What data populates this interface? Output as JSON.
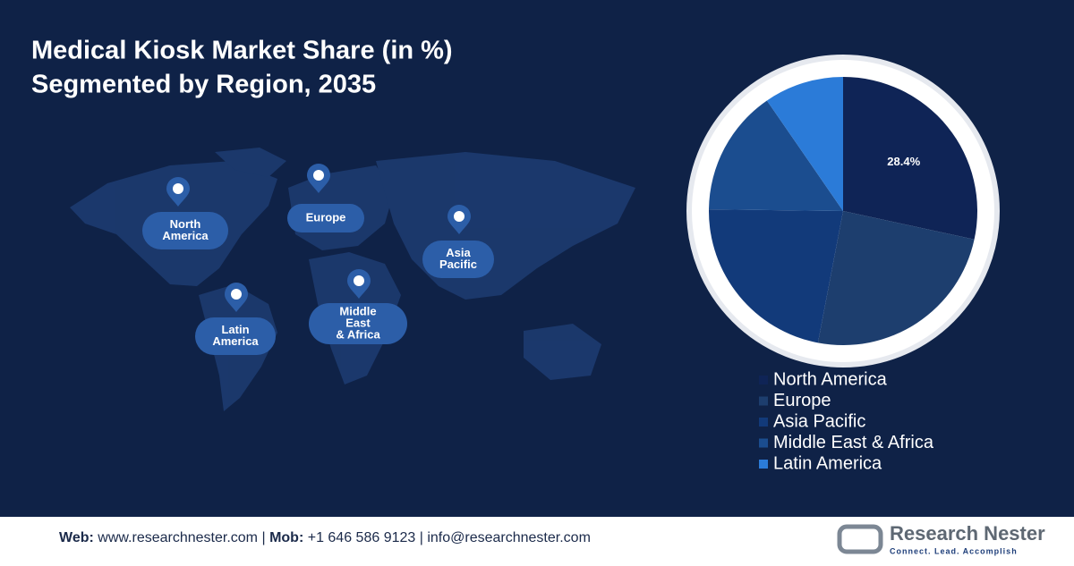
{
  "chart_data": {
    "type": "pie",
    "title": "Medical Kiosk Market Share (in %)",
    "subtitle": "Segmented by Region, 2035",
    "categories": [
      "North America",
      "Europe",
      "Asia Pacific",
      "Middle East & Africa",
      "Latin America"
    ],
    "values": [
      28.4,
      24.6,
      22.2,
      15.2,
      9.6
    ],
    "value_labels": [
      "28.4%",
      null,
      null,
      null,
      null
    ],
    "colors": [
      "#0f2456",
      "#1d3e6e",
      "#123a7a",
      "#1b4d8f",
      "#2b7bd8"
    ],
    "map_labels": [
      [
        "North",
        "America"
      ],
      [
        "Europe"
      ],
      [
        "Asia",
        "Pacific"
      ],
      [
        "Middle",
        "East",
        "& Africa"
      ],
      [
        "Latin",
        "America"
      ]
    ]
  },
  "footer": {
    "web_label": "Web:",
    "web": "www.researchnester.com",
    "separator": "|",
    "mob_label": "Mob:",
    "mob": "+1 646 586 9123",
    "email": "info@researchnester.com"
  },
  "logo": {
    "name": "Research Nester",
    "tagline": "Connect. Lead. Accomplish"
  }
}
